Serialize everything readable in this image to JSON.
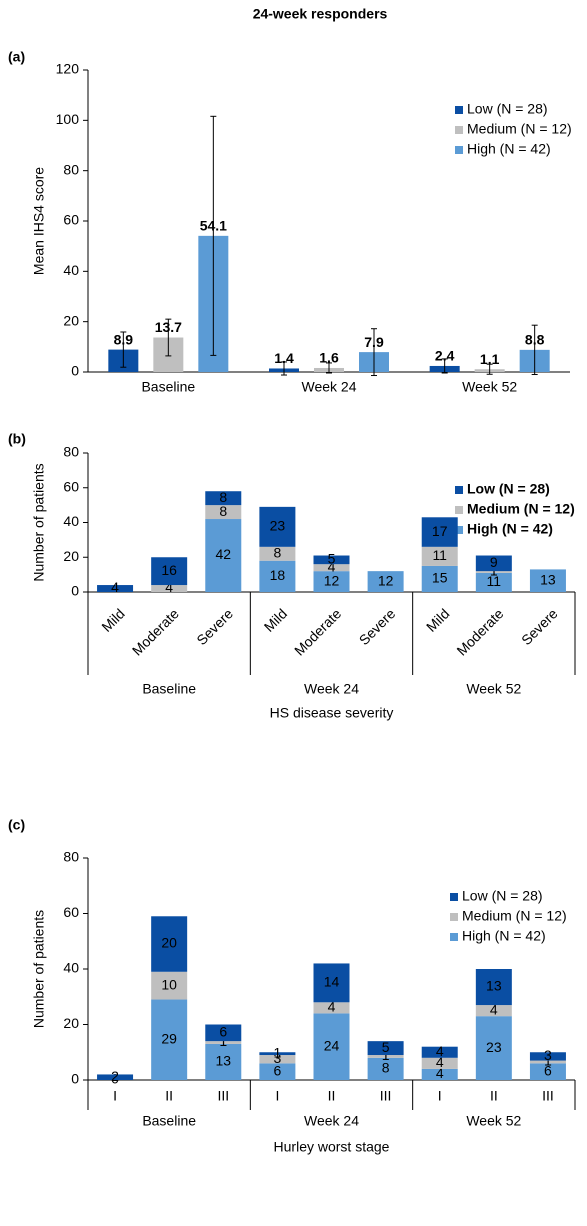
{
  "title": "24-week responders",
  "chart_data": [
    {
      "type": "bar",
      "panel": "(a)",
      "ylabel": "Mean IHS4 score",
      "categories": [
        "Baseline",
        "Week 24",
        "Week 52"
      ],
      "series": [
        {
          "name": "Low (N = 28)",
          "color": "#0a4ea3",
          "values": [
            8.9,
            1.4,
            2.4
          ],
          "errors": [
            7,
            2.6,
            2.8
          ]
        },
        {
          "name": "Medium (N = 12)",
          "color": "#bfbfbf",
          "values": [
            13.7,
            1.6,
            1.1
          ],
          "errors": [
            7.3,
            2,
            2
          ]
        },
        {
          "name": "High (N = 42)",
          "color": "#5b9bd5",
          "values": [
            54.1,
            7.9,
            8.8
          ],
          "errors": [
            47.5,
            9.3,
            9.8
          ]
        }
      ],
      "ylim": [
        0,
        120
      ],
      "yticks": [
        0,
        20,
        40,
        60,
        80,
        100,
        120
      ],
      "legend_bold": false
    },
    {
      "type": "stacked_bar",
      "panel": "(b)",
      "ylabel": "Number of patients",
      "xlabel": "HS disease severity",
      "categories": [
        "Mild",
        "Moderate",
        "Severe",
        "Mild",
        "Moderate",
        "Severe",
        "Mild",
        "Moderate",
        "Severe"
      ],
      "groups": [
        "Baseline",
        "Week 24",
        "Week 52"
      ],
      "series": [
        {
          "name": "Low (N = 28)",
          "color": "#0a4ea3",
          "values": [
            4,
            16,
            8,
            23,
            5,
            null,
            17,
            9,
            null
          ]
        },
        {
          "name": "Medium (N = 12)",
          "color": "#bfbfbf",
          "values": [
            null,
            4,
            8,
            8,
            4,
            null,
            11,
            1,
            null
          ]
        },
        {
          "name": "High (N = 42)",
          "color": "#5b9bd5",
          "values": [
            null,
            null,
            42,
            18,
            12,
            12,
            15,
            11,
            13
          ]
        }
      ],
      "ylim": [
        0,
        80
      ],
      "yticks": [
        0,
        20,
        40,
        60,
        80
      ],
      "legend_bold": true,
      "rotate_labels": true
    },
    {
      "type": "stacked_bar",
      "panel": "(c)",
      "ylabel": "Number of patients",
      "xlabel": "Hurley worst stage",
      "categories": [
        "I",
        "II",
        "III",
        "I",
        "II",
        "III",
        "I",
        "II",
        "III"
      ],
      "groups": [
        "Baseline",
        "Week 24",
        "Week 52"
      ],
      "series": [
        {
          "name": "Low (N = 28)",
          "color": "#0a4ea3",
          "values": [
            2,
            20,
            6,
            1,
            14,
            5,
            4,
            13,
            3
          ]
        },
        {
          "name": "Medium (N = 12)",
          "color": "#bfbfbf",
          "values": [
            0,
            10,
            1,
            3,
            4,
            1,
            4,
            4,
            1
          ]
        },
        {
          "name": "High (N = 42)",
          "color": "#5b9bd5",
          "values": [
            null,
            29,
            13,
            6,
            24,
            8,
            4,
            23,
            6
          ]
        }
      ],
      "ylim": [
        0,
        80
      ],
      "yticks": [
        0,
        20,
        40,
        60,
        80
      ],
      "legend_bold": false,
      "rotate_labels": false
    }
  ]
}
